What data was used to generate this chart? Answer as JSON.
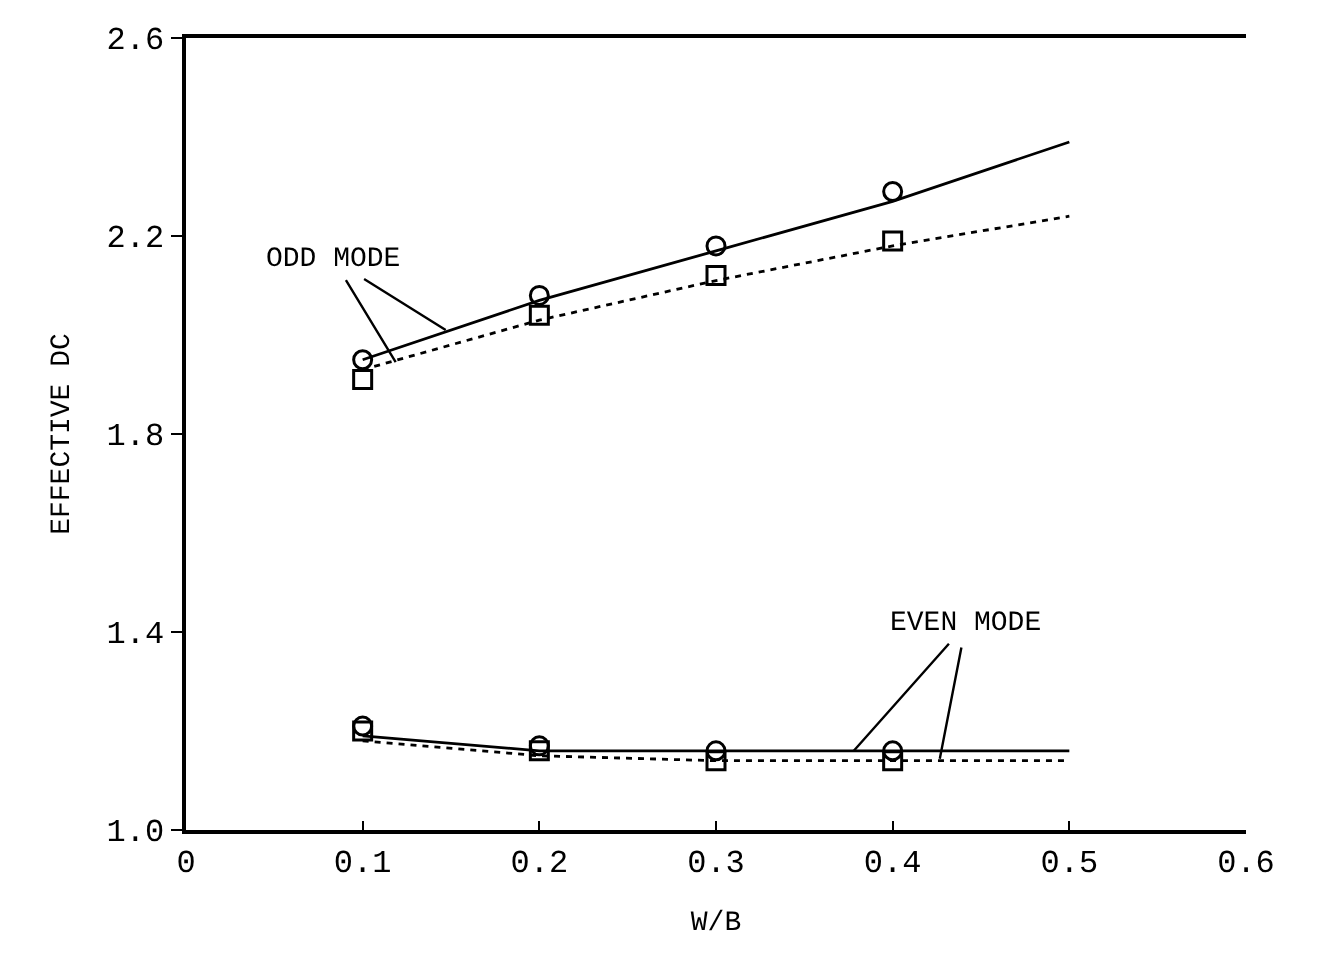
{
  "chart_data": {
    "type": "scatter",
    "xlabel": "W/B",
    "ylabel": "EFFECTIVE DC",
    "xlim": [
      0,
      0.6
    ],
    "xticks": [
      {
        "value": 0,
        "label": "0"
      },
      0.1,
      0.2,
      0.3,
      0.4,
      0.5,
      0.6
    ],
    "ylim": [
      1.0,
      2.6
    ],
    "yticks": [
      {
        "value": 1.0,
        "label": "1.0"
      },
      1.4,
      1.8,
      2.2,
      2.6
    ],
    "series": [
      {
        "marker": "circle",
        "color": "#000000",
        "x": [
          0.1,
          0.2,
          0.3,
          0.4
        ],
        "values": [
          1.95,
          2.08,
          2.18,
          2.29
        ]
      },
      {
        "marker": "square",
        "color": "#000000",
        "x": [
          0.1,
          0.2,
          0.3,
          0.4
        ],
        "values": [
          1.91,
          2.04,
          2.12,
          2.19
        ]
      },
      {
        "type": "line",
        "line_style": "solid",
        "color": "#000000",
        "x": [
          0.1,
          0.2,
          0.3,
          0.4,
          0.5
        ],
        "values": [
          1.95,
          2.07,
          2.17,
          2.27,
          2.39
        ]
      },
      {
        "type": "line",
        "line_style": "dotted",
        "color": "#000000",
        "x": [
          0.1,
          0.2,
          0.3,
          0.4,
          0.5
        ],
        "values": [
          1.93,
          2.03,
          2.11,
          2.18,
          2.24
        ]
      },
      {
        "marker": "circle",
        "color": "#000000",
        "x": [
          0.1,
          0.2,
          0.3,
          0.4
        ],
        "values": [
          1.21,
          1.17,
          1.16,
          1.16
        ]
      },
      {
        "marker": "square",
        "color": "#000000",
        "x": [
          0.1,
          0.2,
          0.3,
          0.4
        ],
        "values": [
          1.2,
          1.16,
          1.14,
          1.14
        ]
      },
      {
        "type": "line",
        "line_style": "solid",
        "color": "#000000",
        "x": [
          0.1,
          0.2,
          0.3,
          0.4,
          0.5
        ],
        "values": [
          1.19,
          1.16,
          1.16,
          1.16,
          1.16
        ]
      },
      {
        "type": "line",
        "line_style": "dotted",
        "color": "#000000",
        "x": [
          0.1,
          0.2,
          0.3,
          0.4,
          0.5
        ],
        "values": [
          1.18,
          1.15,
          1.14,
          1.14,
          1.14
        ]
      }
    ],
    "annotations": [
      {
        "text": "ODD MODE",
        "x": 0.147,
        "y": 2.01
      },
      {
        "text": "EVEN MODE",
        "x": 0.378,
        "y": 1.16
      }
    ]
  }
}
